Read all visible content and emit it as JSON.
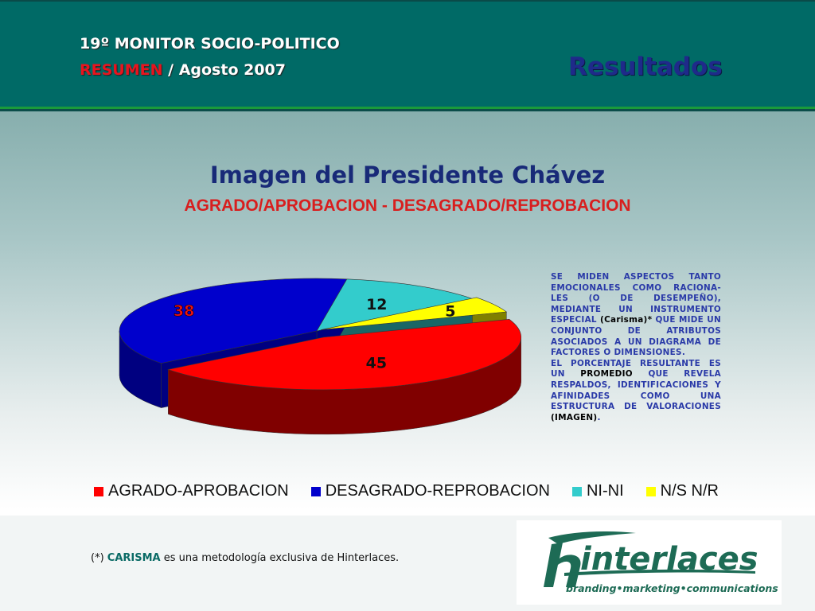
{
  "header": {
    "monitor": "19º MONITOR SOCIO-POLITICO",
    "resumen": "RESUMEN",
    "date": "/ Agosto 2007",
    "section": "Resultados"
  },
  "title": "Imagen del Presidente Chávez",
  "subtitle": "AGRADO/APROBACION - DESAGRADO/REPROBACION",
  "description": {
    "p1_a": "SE MIDEN ASPECTOS TANTO EMOCIONALES COMO RACIONA-LES (O DE DESEMPEÑO), MEDIANTE UN INSTRUMENTO ESPECIAL ",
    "p1_b": "(Carisma)*",
    "p1_c": " QUE MIDE UN CONJUNTO DE ATRIBUTOS ASOCIADOS A UN DIAGRAMA DE FACTORES O DIMENSIONES.",
    "p2_a": "EL PORCENTAJE RESULTANTE ES UN ",
    "p2_b": "PROMEDIO",
    "p2_c": " QUE REVELA RESPALDOS, IDENTIFICACIONES Y AFINIDADES COMO UNA ESTRUCTURA DE VALORACIONES ",
    "p2_d": "(IMAGEN)",
    "p2_e": "."
  },
  "chart_data": {
    "type": "pie",
    "style": "3d-exploded",
    "categories": [
      "AGRADO-APROBACION",
      "DESAGRADO-REPROBACION",
      "NI-NI",
      "N/S N/R"
    ],
    "values": [
      45,
      38,
      12,
      5
    ],
    "colors": [
      "#ff0000",
      "#0000cc",
      "#33cccc",
      "#ffff00"
    ],
    "side_colors": [
      "#800000",
      "#000080",
      "#1a6666",
      "#808000"
    ],
    "label_colors": [
      "#111111",
      "#ee1111",
      "#111111",
      "#111111"
    ],
    "legend_position": "bottom"
  },
  "footer": {
    "note_a": "(*) ",
    "note_b": "CARISMA",
    "note_c": " es una metodología exclusiva de Hinterlaces."
  },
  "logo": {
    "name": "hinterlaces",
    "tagline": "branding•marketing•communications"
  }
}
